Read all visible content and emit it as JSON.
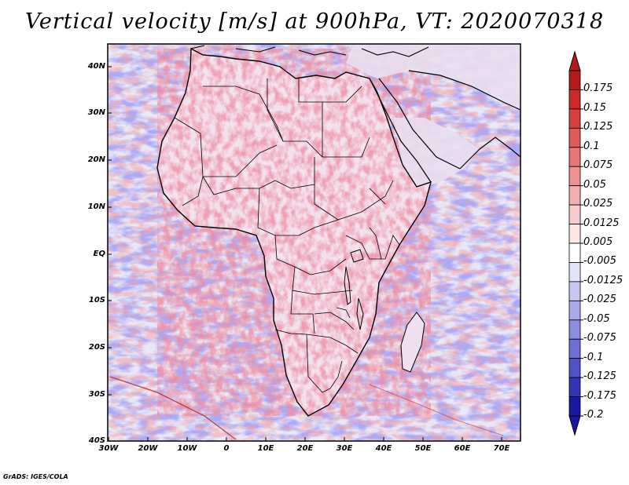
{
  "title": "Vertical velocity [m/s] at 900hPa, VT: 2020070318",
  "credit": "GrADS: IGES/COLA",
  "latitudes": [
    "40N",
    "30N",
    "20N",
    "10N",
    "EQ",
    "10S",
    "20S",
    "30S",
    "40S"
  ],
  "longitudes": [
    "30W",
    "20W",
    "10W",
    "0",
    "10E",
    "20E",
    "30E",
    "40E",
    "50E",
    "60E",
    "70E"
  ],
  "colorbar": {
    "labels": [
      "0.175",
      "0.15",
      "0.125",
      "0.1",
      "0.075",
      "0.05",
      "0.025",
      "0.0125",
      "0.005",
      "-0.005",
      "-0.0125",
      "-0.025",
      "-0.05",
      "-0.075",
      "-0.1",
      "-0.125",
      "-0.175",
      "-0.2"
    ],
    "colors": [
      "#b01c1c",
      "#c82a2a",
      "#d84040",
      "#e05a5a",
      "#e87676",
      "#ee9292",
      "#f3b0b0",
      "#f8cccc",
      "#fce6e6",
      "#ffffff",
      "#e4e4f8",
      "#c8c8f2",
      "#aaaaea",
      "#8c8ce0",
      "#6e6ed6",
      "#5050c8",
      "#3434b8",
      "#1818a0"
    ]
  },
  "palette": {
    "ocean_base": "#e6e6f6",
    "land_base": "#efe0ee",
    "coast": "#000000"
  }
}
